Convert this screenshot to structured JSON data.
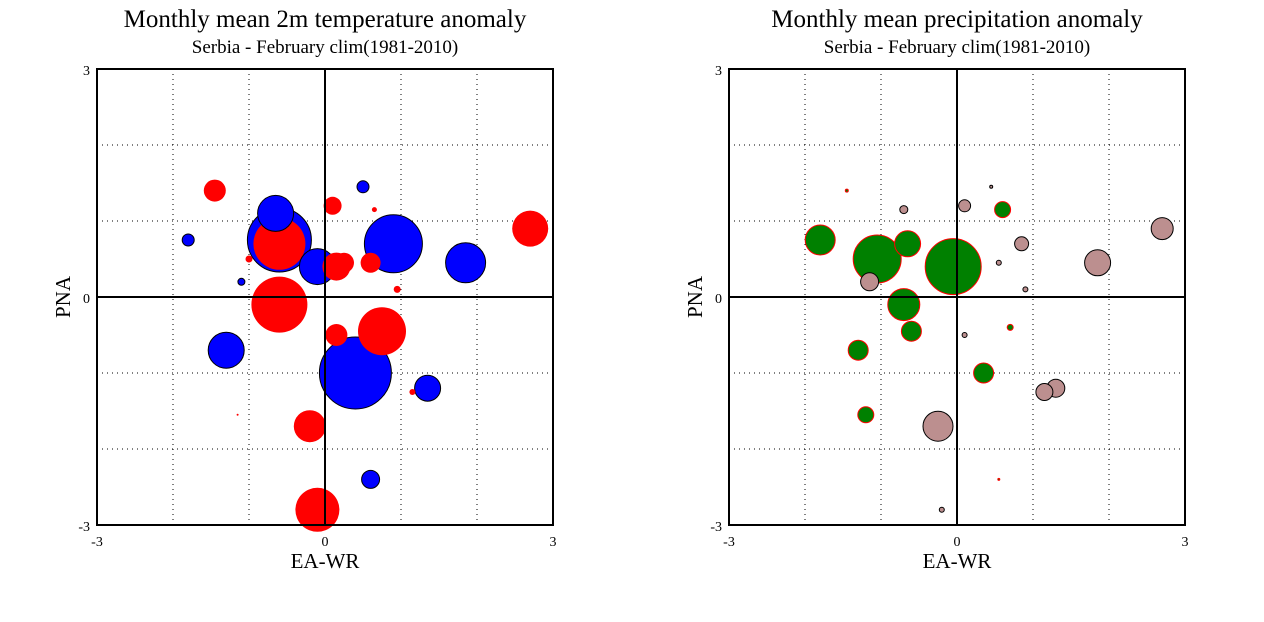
{
  "chart_data": [
    {
      "type": "scatter",
      "title": "Monthly mean 2m temperature anomaly",
      "subtitle": "Serbia - February  clim(1981-2010)",
      "xlabel": "EA-WR",
      "ylabel": "PNA",
      "xlim": [
        -3,
        3
      ],
      "ylim": [
        -3,
        3
      ],
      "x_ticks": [
        "-3",
        "0",
        "3"
      ],
      "y_ticks": [
        "3",
        "0",
        "-3"
      ],
      "grid": true,
      "grid_style": "dotted, step 1",
      "marker_size_encodes": "anomaly magnitude",
      "colors": {
        "positive": "#ff0000",
        "negative": "#0000ff",
        "edge": "#000000"
      },
      "points": [
        {
          "x": 0.4,
          "y": -1.0,
          "size": 36,
          "sign": "negative"
        },
        {
          "x": -0.6,
          "y": 0.75,
          "size": 32,
          "sign": "negative"
        },
        {
          "x": 0.9,
          "y": 0.7,
          "size": 29,
          "sign": "negative"
        },
        {
          "x": -0.6,
          "y": -0.1,
          "size": 28,
          "sign": "positive"
        },
        {
          "x": -0.6,
          "y": 0.7,
          "size": 26,
          "sign": "positive"
        },
        {
          "x": 0.75,
          "y": -0.45,
          "size": 24,
          "sign": "positive"
        },
        {
          "x": -0.1,
          "y": -2.8,
          "size": 22,
          "sign": "positive"
        },
        {
          "x": 1.85,
          "y": 0.45,
          "size": 20,
          "sign": "negative"
        },
        {
          "x": -0.1,
          "y": 0.4,
          "size": 18,
          "sign": "negative"
        },
        {
          "x": -0.65,
          "y": 1.1,
          "size": 18,
          "sign": "negative"
        },
        {
          "x": 2.7,
          "y": 0.9,
          "size": 18,
          "sign": "positive"
        },
        {
          "x": -1.3,
          "y": -0.7,
          "size": 18,
          "sign": "negative"
        },
        {
          "x": -0.2,
          "y": -1.7,
          "size": 16,
          "sign": "positive"
        },
        {
          "x": 0.15,
          "y": 0.4,
          "size": 14,
          "sign": "positive"
        },
        {
          "x": 1.35,
          "y": -1.2,
          "size": 13,
          "sign": "negative"
        },
        {
          "x": -1.45,
          "y": 1.4,
          "size": 11,
          "sign": "positive"
        },
        {
          "x": 0.15,
          "y": -0.5,
          "size": 11,
          "sign": "positive"
        },
        {
          "x": 0.25,
          "y": 0.45,
          "size": 10,
          "sign": "positive"
        },
        {
          "x": 0.6,
          "y": 0.45,
          "size": 10,
          "sign": "positive"
        },
        {
          "x": 0.1,
          "y": 1.2,
          "size": 9,
          "sign": "positive"
        },
        {
          "x": 0.6,
          "y": -2.4,
          "size": 9,
          "sign": "negative"
        },
        {
          "x": -1.8,
          "y": 0.75,
          "size": 6,
          "sign": "negative"
        },
        {
          "x": 0.5,
          "y": 1.45,
          "size": 6,
          "sign": "negative"
        },
        {
          "x": -1.1,
          "y": 0.2,
          "size": 3.5,
          "sign": "negative"
        },
        {
          "x": 0.95,
          "y": 0.1,
          "size": 3.5,
          "sign": "positive"
        },
        {
          "x": -1.0,
          "y": 0.5,
          "size": 3.5,
          "sign": "positive"
        },
        {
          "x": 1.15,
          "y": -1.25,
          "size": 3,
          "sign": "positive"
        },
        {
          "x": 0.65,
          "y": 1.15,
          "size": 2.5,
          "sign": "positive"
        },
        {
          "x": -1.15,
          "y": -1.55,
          "size": 1,
          "sign": "positive"
        }
      ]
    },
    {
      "type": "scatter",
      "title": "Monthly mean precipitation anomaly",
      "subtitle": "Serbia - February  clim(1981-2010)",
      "xlabel": "EA-WR",
      "ylabel": "PNA",
      "xlim": [
        -3,
        3
      ],
      "ylim": [
        -3,
        3
      ],
      "x_ticks": [
        "-3",
        "0",
        "3"
      ],
      "y_ticks": [
        "3",
        "0",
        "-3"
      ],
      "grid": true,
      "grid_style": "dotted, step 1",
      "marker_size_encodes": "anomaly magnitude",
      "colors": {
        "positive": "#008000",
        "positive_edge": "#ff0000",
        "negative": "#bc8f8f",
        "negative_edge": "#000000"
      },
      "points": [
        {
          "x": -0.05,
          "y": 0.4,
          "size": 28,
          "sign": "positive"
        },
        {
          "x": -1.05,
          "y": 0.5,
          "size": 24,
          "sign": "positive"
        },
        {
          "x": -0.7,
          "y": -0.1,
          "size": 16,
          "sign": "positive"
        },
        {
          "x": -1.8,
          "y": 0.75,
          "size": 15,
          "sign": "positive"
        },
        {
          "x": -0.65,
          "y": 0.7,
          "size": 13,
          "sign": "positive"
        },
        {
          "x": -0.25,
          "y": -1.7,
          "size": 15,
          "sign": "negative"
        },
        {
          "x": 1.85,
          "y": 0.45,
          "size": 13,
          "sign": "negative"
        },
        {
          "x": 2.7,
          "y": 0.9,
          "size": 11,
          "sign": "negative"
        },
        {
          "x": 1.3,
          "y": -1.2,
          "size": 9,
          "sign": "negative"
        },
        {
          "x": 1.15,
          "y": -1.25,
          "size": 8.5,
          "sign": "negative"
        },
        {
          "x": -1.15,
          "y": 0.2,
          "size": 9,
          "sign": "negative"
        },
        {
          "x": -1.3,
          "y": -0.7,
          "size": 10,
          "sign": "positive"
        },
        {
          "x": -0.6,
          "y": -0.45,
          "size": 10,
          "sign": "positive"
        },
        {
          "x": 0.35,
          "y": -1.0,
          "size": 10,
          "sign": "positive"
        },
        {
          "x": -1.2,
          "y": -1.55,
          "size": 8,
          "sign": "positive"
        },
        {
          "x": 0.6,
          "y": 1.15,
          "size": 8,
          "sign": "positive"
        },
        {
          "x": 0.85,
          "y": 0.7,
          "size": 7,
          "sign": "negative"
        },
        {
          "x": 0.1,
          "y": 1.2,
          "size": 6,
          "sign": "negative"
        },
        {
          "x": -0.7,
          "y": 1.15,
          "size": 4,
          "sign": "negative"
        },
        {
          "x": 0.55,
          "y": 0.45,
          "size": 2.5,
          "sign": "negative"
        },
        {
          "x": 0.9,
          "y": 0.1,
          "size": 2.5,
          "sign": "negative"
        },
        {
          "x": 0.1,
          "y": -0.5,
          "size": 2.5,
          "sign": "negative"
        },
        {
          "x": 0.7,
          "y": -0.4,
          "size": 3,
          "sign": "positive"
        },
        {
          "x": -0.2,
          "y": -2.8,
          "size": 2.5,
          "sign": "negative"
        },
        {
          "x": 0.45,
          "y": 1.45,
          "size": 1.5,
          "sign": "negative"
        },
        {
          "x": -1.45,
          "y": 1.4,
          "size": 1.5,
          "sign": "positive"
        },
        {
          "x": 0.55,
          "y": -2.4,
          "size": 1,
          "sign": "positive"
        }
      ]
    }
  ]
}
